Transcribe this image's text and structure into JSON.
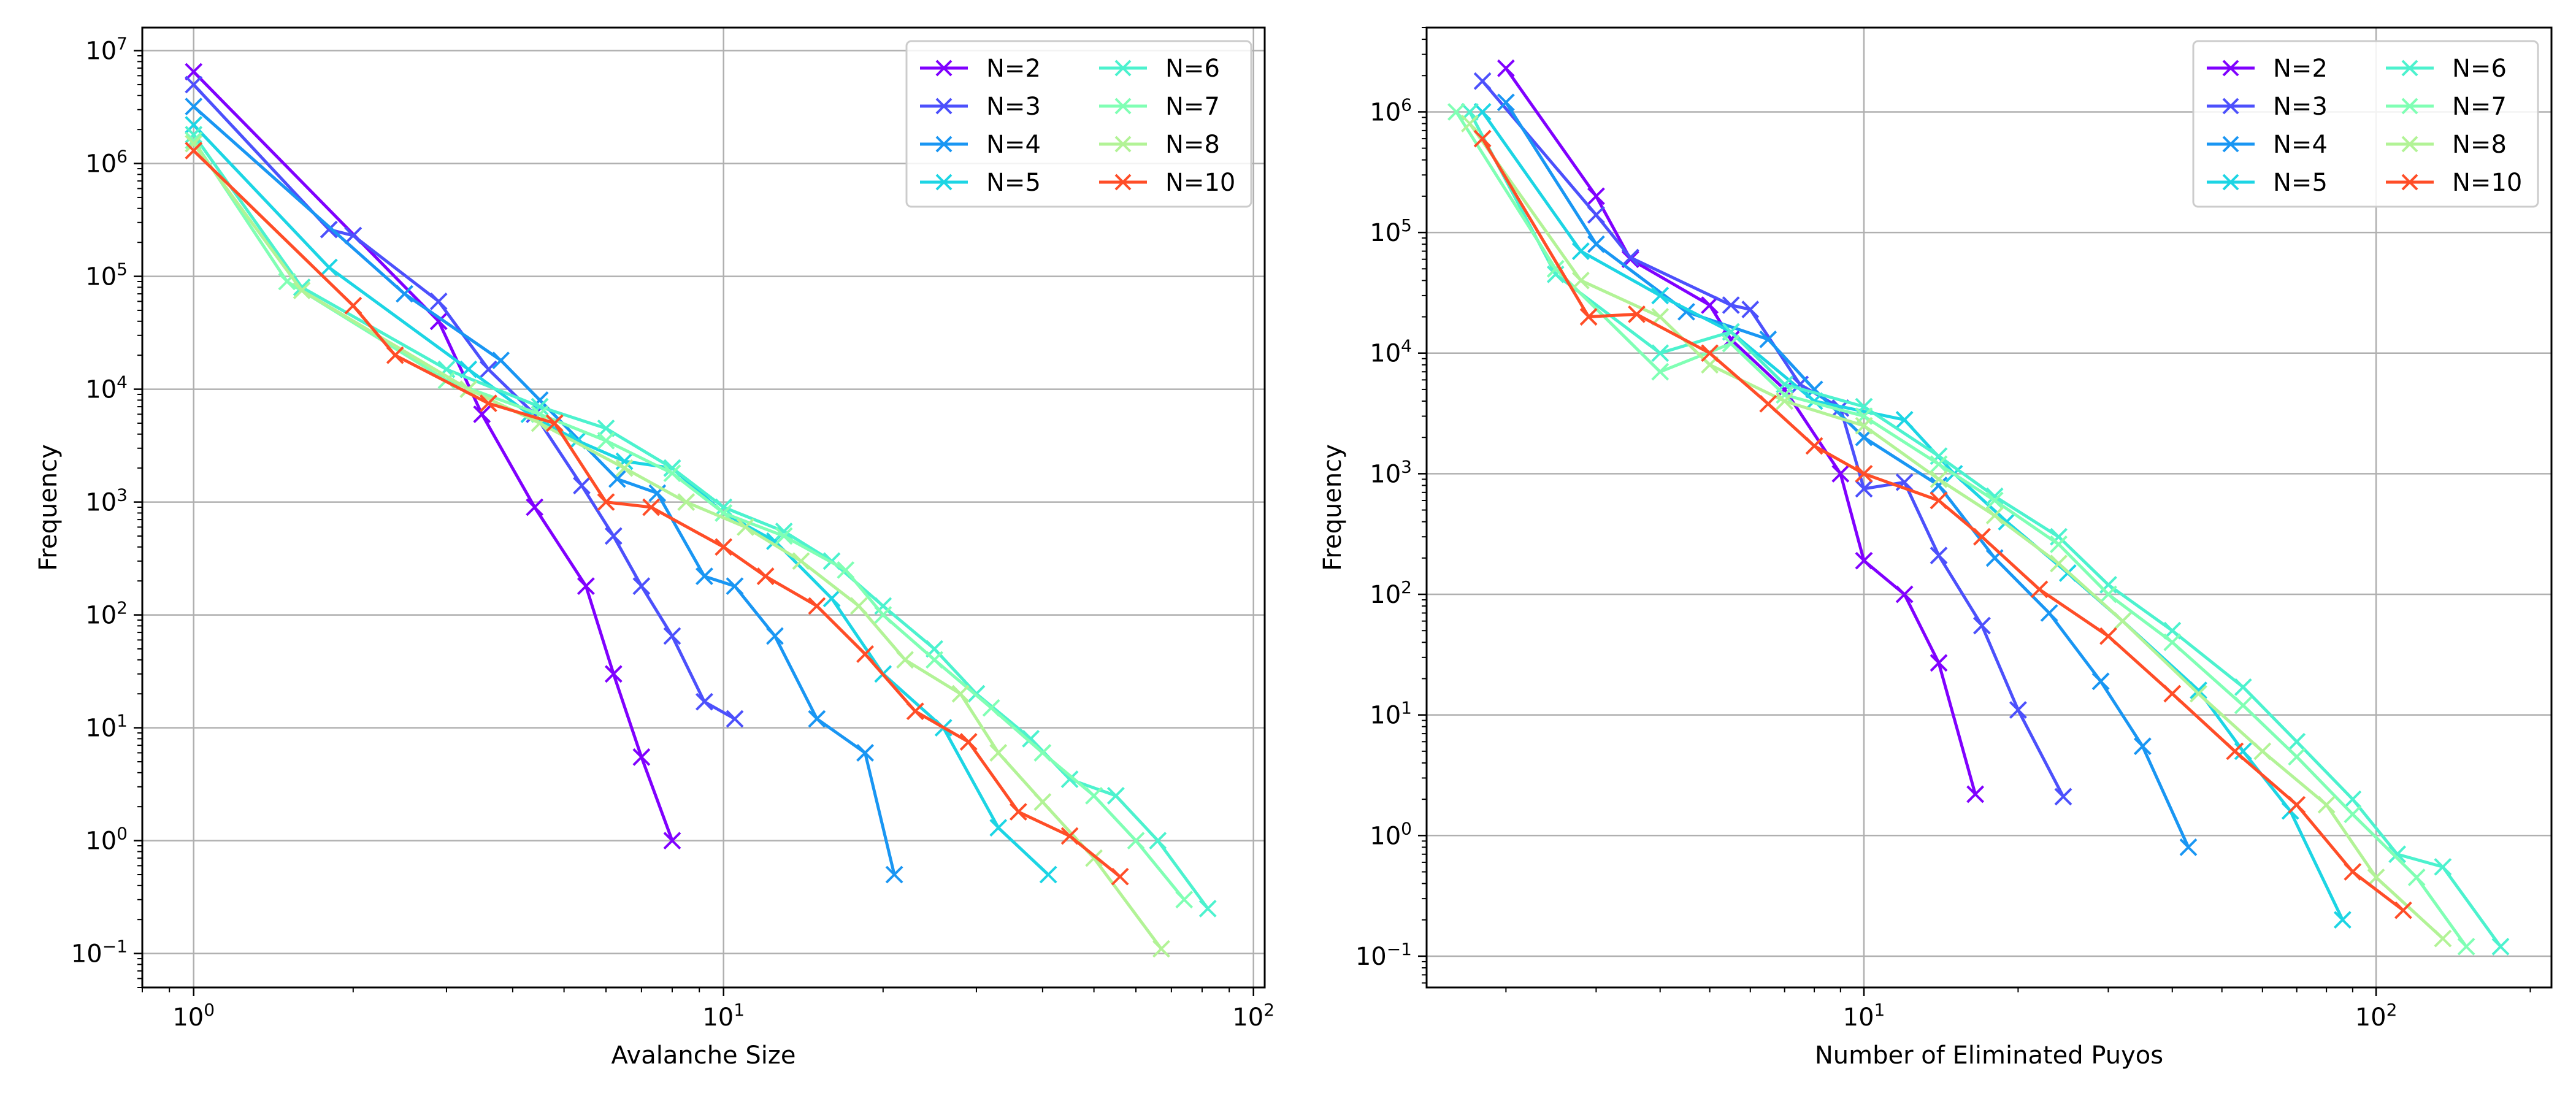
{
  "chart_data": [
    {
      "type": "line",
      "title": "",
      "xlabel": "Avalanche Size",
      "ylabel": "Frequency",
      "xscale": "log",
      "yscale": "log",
      "xlim": [
        0.8,
        105
      ],
      "ylim": [
        0.05,
        16000000.0
      ],
      "xticks": [
        {
          "value": 1,
          "label": "10⁰"
        },
        {
          "value": 10,
          "label": "10¹"
        },
        {
          "value": 100,
          "label": "10²"
        }
      ],
      "yticks": [
        {
          "value": 0.1,
          "label": "10⁻¹"
        },
        {
          "value": 1,
          "label": "10⁰"
        },
        {
          "value": 10,
          "label": "10¹"
        },
        {
          "value": 100,
          "label": "10²"
        },
        {
          "value": 1000,
          "label": "10³"
        },
        {
          "value": 10000,
          "label": "10⁴"
        },
        {
          "value": 100000,
          "label": "10⁵"
        },
        {
          "value": 1000000,
          "label": "10⁶"
        },
        {
          "value": 10000000,
          "label": "10⁷"
        }
      ],
      "grid": true,
      "legend_position": "top-right",
      "series": [
        {
          "name": "N=2",
          "color": "#8000ff",
          "points": [
            [
              1,
              6500000.0
            ],
            [
              2.9,
              40000.0
            ],
            [
              3.5,
              6000.0
            ],
            [
              4.4,
              900.0
            ],
            [
              5.5,
              180.0
            ],
            [
              6.2,
              30
            ],
            [
              7.0,
              5.5
            ],
            [
              8.0,
              1.0
            ]
          ]
        },
        {
          "name": "N=3",
          "color": "#4c50fc",
          "points": [
            [
              1,
              5000000.0
            ],
            [
              1.8,
              260000.0
            ],
            [
              2.0,
              230000.0
            ],
            [
              2.9,
              60000.0
            ],
            [
              3.6,
              15000.0
            ],
            [
              4.4,
              6000.0
            ],
            [
              5.4,
              1400.0
            ],
            [
              6.2,
              500.0
            ],
            [
              7.0,
              180.0
            ],
            [
              8.0,
              65
            ],
            [
              9.2,
              17
            ],
            [
              10.5,
              12
            ]
          ]
        },
        {
          "name": "N=4",
          "color": "#1996f3",
          "points": [
            [
              1,
              3200000.0
            ],
            [
              2.5,
              70000.0
            ],
            [
              3.8,
              18000.0
            ],
            [
              4.5,
              8000.0
            ],
            [
              6.3,
              1600.0
            ],
            [
              7.5,
              1200.0
            ],
            [
              9.2,
              220.0
            ],
            [
              10.5,
              180.0
            ],
            [
              12.5,
              65
            ],
            [
              15,
              12
            ],
            [
              18.5,
              6
            ],
            [
              21,
              0.5
            ]
          ]
        },
        {
          "name": "N=5",
          "color": "#1cd5e4",
          "points": [
            [
              1,
              2200000.0
            ],
            [
              1.8,
              120000.0
            ],
            [
              3.3,
              15000.0
            ],
            [
              4.3,
              6000.0
            ],
            [
              5.3,
              3500.0
            ],
            [
              6.5,
              2300.0
            ],
            [
              8.0,
              2000.0
            ],
            [
              10,
              800.0
            ],
            [
              12.5,
              450.0
            ],
            [
              16,
              140.0
            ],
            [
              20,
              30
            ],
            [
              26,
              10
            ],
            [
              33,
              1.3
            ],
            [
              41,
              0.5
            ]
          ]
        },
        {
          "name": "N=6",
          "color": "#4cf2ce",
          "points": [
            [
              1,
              1800000.0
            ],
            [
              1.6,
              80000.0
            ],
            [
              3.0,
              15000.0
            ],
            [
              4.5,
              7000.0
            ],
            [
              6.0,
              4500.0
            ],
            [
              8,
              2000.0
            ],
            [
              10,
              900.0
            ],
            [
              13,
              550.0
            ],
            [
              16,
              300.0
            ],
            [
              20,
              120.0
            ],
            [
              25,
              50
            ],
            [
              30,
              20
            ],
            [
              38,
              8
            ],
            [
              45,
              3.5
            ],
            [
              55,
              2.5
            ],
            [
              66,
              1.0
            ],
            [
              82,
              0.25
            ]
          ]
        },
        {
          "name": "N=7",
          "color": "#80ffb4",
          "points": [
            [
              1,
              1600000.0
            ],
            [
              1.5,
              90000.0
            ],
            [
              3.0,
              12000.0
            ],
            [
              4.5,
              6000.0
            ],
            [
              6.0,
              3500.0
            ],
            [
              8,
              1800.0
            ],
            [
              10,
              800.0
            ],
            [
              13,
              500.0
            ],
            [
              17,
              250.0
            ],
            [
              20,
              100.0
            ],
            [
              25,
              40
            ],
            [
              32,
              15
            ],
            [
              40,
              6
            ],
            [
              50,
              2.5
            ],
            [
              60,
              1.0
            ],
            [
              74,
              0.3
            ]
          ]
        },
        {
          "name": "N=8",
          "color": "#b2f396",
          "points": [
            [
              1,
              1500000.0
            ],
            [
              1.6,
              75000.0
            ],
            [
              3.3,
              10000.0
            ],
            [
              4.5,
              5000.0
            ],
            [
              6.5,
              2000.0
            ],
            [
              8.5,
              1000.0
            ],
            [
              11,
              600.0
            ],
            [
              14,
              300.0
            ],
            [
              18,
              120.0
            ],
            [
              22,
              40
            ],
            [
              28,
              20
            ],
            [
              33,
              6
            ],
            [
              40,
              2.2
            ],
            [
              50,
              0.7
            ],
            [
              67,
              0.11
            ]
          ]
        },
        {
          "name": "N=10",
          "color": "#ff4d27",
          "points": [
            [
              1,
              1300000.0
            ],
            [
              2.0,
              55000.0
            ],
            [
              2.4,
              20000.0
            ],
            [
              3.6,
              7500.0
            ],
            [
              4.8,
              5000.0
            ],
            [
              6.0,
              1000.0
            ],
            [
              7.3,
              900.0
            ],
            [
              10,
              400.0
            ],
            [
              12,
              220.0
            ],
            [
              15,
              120.0
            ],
            [
              18.5,
              45
            ],
            [
              23,
              14
            ],
            [
              29,
              7.5
            ],
            [
              36,
              1.8
            ],
            [
              45,
              1.1
            ],
            [
              56,
              0.48
            ]
          ]
        }
      ]
    },
    {
      "type": "line",
      "title": "",
      "xlabel": "Number of Eliminated Puyos",
      "ylabel": "Frequency",
      "xscale": "log",
      "yscale": "log",
      "xlim": [
        1.4,
        220
      ],
      "ylim": [
        0.055,
        5000000.0
      ],
      "xticks": [
        {
          "value": 10,
          "label": "10¹"
        },
        {
          "value": 100,
          "label": "10²"
        }
      ],
      "yticks": [
        {
          "value": 0.1,
          "label": "10⁻¹"
        },
        {
          "value": 1,
          "label": "10⁰"
        },
        {
          "value": 10,
          "label": "10¹"
        },
        {
          "value": 100,
          "label": "10²"
        },
        {
          "value": 1000,
          "label": "10³"
        },
        {
          "value": 10000,
          "label": "10⁴"
        },
        {
          "value": 100000,
          "label": "10⁵"
        },
        {
          "value": 1000000,
          "label": "10⁶"
        }
      ],
      "grid": true,
      "legend_position": "top-right",
      "series": [
        {
          "name": "N=2",
          "color": "#8000ff",
          "points": [
            [
              2,
              2300000.0
            ],
            [
              3,
              200000.0
            ],
            [
              3.5,
              60000.0
            ],
            [
              5,
              25000.0
            ],
            [
              5.5,
              13000.0
            ],
            [
              7,
              5000.0
            ],
            [
              9,
              1000.0
            ],
            [
              10,
              190.0
            ],
            [
              12,
              100.0
            ],
            [
              14,
              27
            ],
            [
              16.5,
              2.2
            ]
          ]
        },
        {
          "name": "N=3",
          "color": "#4c50fc",
          "points": [
            [
              1.8,
              1800000.0
            ],
            [
              3,
              140000.0
            ],
            [
              3.5,
              62000.0
            ],
            [
              5.5,
              25000.0
            ],
            [
              6,
              23000.0
            ],
            [
              7.5,
              5500.0
            ],
            [
              9,
              3500.0
            ],
            [
              10,
              750.0
            ],
            [
              12,
              850.0
            ],
            [
              14,
              210.0
            ],
            [
              17,
              55
            ],
            [
              20,
              11
            ],
            [
              24.5,
              2.1
            ]
          ]
        },
        {
          "name": "N=4",
          "color": "#1996f3",
          "points": [
            [
              2,
              1200000.0
            ],
            [
              3,
              80000.0
            ],
            [
              4.5,
              22000.0
            ],
            [
              6.5,
              13000.0
            ],
            [
              8,
              5000.0
            ],
            [
              10,
              2000.0
            ],
            [
              14,
              800.0
            ],
            [
              18,
              200.0
            ],
            [
              23,
              70
            ],
            [
              29,
              19
            ],
            [
              35,
              5.5
            ],
            [
              43,
              0.8
            ]
          ]
        },
        {
          "name": "N=5",
          "color": "#1cd5e4",
          "points": [
            [
              1.8,
              1000000.0
            ],
            [
              2.8,
              70000.0
            ],
            [
              4,
              30000.0
            ],
            [
              5.5,
              15000.0
            ],
            [
              8,
              4000.0
            ],
            [
              12,
              2800.0
            ],
            [
              15,
              1000.0
            ],
            [
              19,
              400.0
            ],
            [
              25,
              150.0
            ],
            [
              32,
              60
            ],
            [
              45,
              16
            ],
            [
              55,
              5
            ],
            [
              68,
              1.6
            ],
            [
              86,
              0.2
            ]
          ]
        },
        {
          "name": "N=6",
          "color": "#4cf2ce",
          "points": [
            [
              1.7,
              1000000.0
            ],
            [
              2.5,
              45000.0
            ],
            [
              4,
              10000.0
            ],
            [
              5.5,
              15000.0
            ],
            [
              7,
              5500.0
            ],
            [
              10,
              3600.0
            ],
            [
              14,
              1400.0
            ],
            [
              18,
              650.0
            ],
            [
              24,
              300.0
            ],
            [
              30,
              120.0
            ],
            [
              40,
              50
            ],
            [
              55,
              17
            ],
            [
              70,
              6
            ],
            [
              90,
              2.0
            ],
            [
              110,
              0.7
            ],
            [
              135,
              0.55
            ],
            [
              175,
              0.12
            ]
          ]
        },
        {
          "name": "N=7",
          "color": "#80ffb4",
          "points": [
            [
              1.6,
              1000000.0
            ],
            [
              2.5,
              50000.0
            ],
            [
              4,
              7000.0
            ],
            [
              5.5,
              12000.0
            ],
            [
              7,
              4500.0
            ],
            [
              10,
              3000.0
            ],
            [
              14,
              1200.0
            ],
            [
              18,
              600.0
            ],
            [
              24,
              260.0
            ],
            [
              30,
              100.0
            ],
            [
              40,
              40
            ],
            [
              55,
              12
            ],
            [
              70,
              4.5
            ],
            [
              90,
              1.5
            ],
            [
              120,
              0.45
            ],
            [
              150,
              0.12
            ]
          ]
        },
        {
          "name": "N=8",
          "color": "#b2f396",
          "points": [
            [
              1.7,
              800000.0
            ],
            [
              2.8,
              40000.0
            ],
            [
              4,
              20000.0
            ],
            [
              5,
              8000.0
            ],
            [
              7,
              4000.0
            ],
            [
              10,
              2500.0
            ],
            [
              14,
              900.0
            ],
            [
              18,
              450.0
            ],
            [
              24,
              180.0
            ],
            [
              32,
              60
            ],
            [
              45,
              15
            ],
            [
              60,
              5
            ],
            [
              80,
              1.8
            ],
            [
              100,
              0.45
            ],
            [
              135,
              0.14
            ]
          ]
        },
        {
          "name": "N=10",
          "color": "#ff4d27",
          "points": [
            [
              1.8,
              600000.0
            ],
            [
              2.9,
              20000.0
            ],
            [
              3.6,
              21000.0
            ],
            [
              5,
              10000.0
            ],
            [
              6.5,
              3800.0
            ],
            [
              8,
              1700.0
            ],
            [
              10,
              1000.0
            ],
            [
              14,
              600.0
            ],
            [
              17,
              300.0
            ],
            [
              22,
              110.0
            ],
            [
              30,
              45
            ],
            [
              40,
              15
            ],
            [
              53,
              5
            ],
            [
              70,
              1.8
            ],
            [
              90,
              0.5
            ],
            [
              113,
              0.24
            ]
          ]
        }
      ]
    }
  ]
}
